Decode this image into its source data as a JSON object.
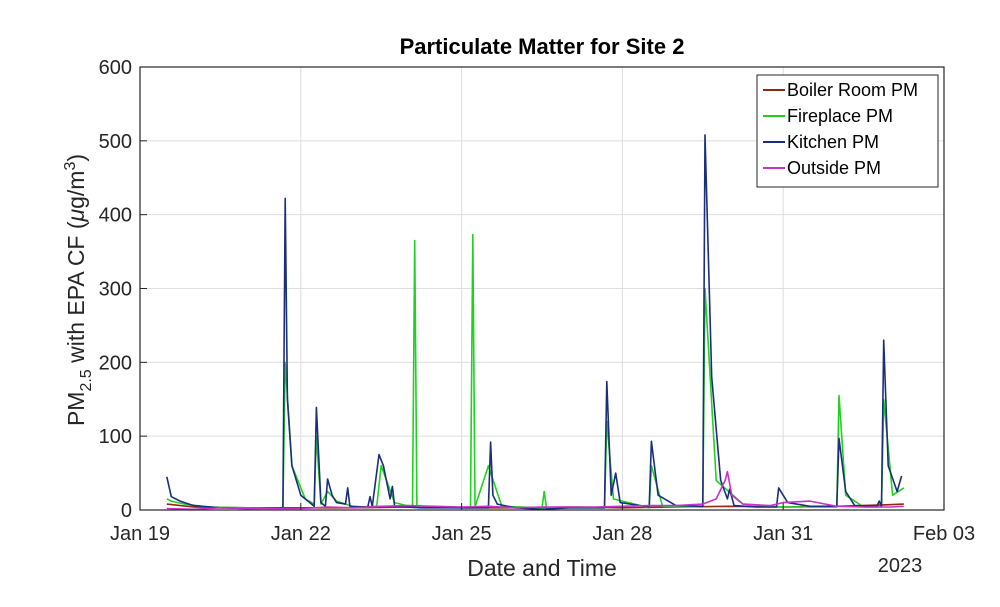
{
  "chart_data": {
    "type": "line",
    "title": "Particulate Matter for Site 2",
    "xlabel": "Date and Time",
    "ylabel_main": "PM",
    "ylabel_sub": "2.5",
    "ylabel_rest": " with EPA CF (",
    "ylabel_mu": "μ",
    "ylabel_unit": "g/m",
    "ylabel_sup": "3",
    "ylabel_close": ")",
    "year_label": "2023",
    "ylim": [
      0,
      600
    ],
    "yticks": [
      "0",
      "100",
      "200",
      "300",
      "400",
      "500",
      "600"
    ],
    "xlim": [
      "2023-01-19",
      "2023-02-03"
    ],
    "xticks": [
      {
        "date": "2023-01-19",
        "label": "Jan 19"
      },
      {
        "date": "2023-01-22",
        "label": "Jan 22"
      },
      {
        "date": "2023-01-25",
        "label": "Jan 25"
      },
      {
        "date": "2023-01-28",
        "label": "Jan 28"
      },
      {
        "date": "2023-01-31",
        "label": "Jan 31"
      },
      {
        "date": "2023-02-03",
        "label": "Feb 03"
      }
    ],
    "grid": true,
    "legend_position": "top-right",
    "series": [
      {
        "name": "Boiler Room PM",
        "color": "#8b2a0f",
        "points": [
          [
            "2023-01-19T12:00",
            8
          ],
          [
            "2023-01-20T00:00",
            4
          ],
          [
            "2023-01-21T00:00",
            3
          ],
          [
            "2023-01-22T00:00",
            3
          ],
          [
            "2023-01-23T00:00",
            3
          ],
          [
            "2023-01-24T00:00",
            4
          ],
          [
            "2023-01-25T00:00",
            3
          ],
          [
            "2023-01-26T00:00",
            3
          ],
          [
            "2023-01-27T00:00",
            4
          ],
          [
            "2023-01-28T00:00",
            3
          ],
          [
            "2023-01-29T00:00",
            4
          ],
          [
            "2023-01-30T00:00",
            5
          ],
          [
            "2023-01-31T00:00",
            4
          ],
          [
            "2023-02-01T00:00",
            5
          ],
          [
            "2023-02-01T22:00",
            7
          ],
          [
            "2023-02-02T06:00",
            8
          ]
        ]
      },
      {
        "name": "Fireplace PM",
        "color": "#22d022",
        "points": [
          [
            "2023-01-19T12:00",
            15
          ],
          [
            "2023-01-19T14:00",
            12
          ],
          [
            "2023-01-19T20:00",
            8
          ],
          [
            "2023-01-20T06:00",
            4
          ],
          [
            "2023-01-21T00:00",
            3
          ],
          [
            "2023-01-21T16:00",
            3
          ],
          [
            "2023-01-21T17:00",
            200
          ],
          [
            "2023-01-21T20:00",
            60
          ],
          [
            "2023-01-22T02:00",
            15
          ],
          [
            "2023-01-22T06:00",
            8
          ],
          [
            "2023-01-22T07:00",
            100
          ],
          [
            "2023-01-22T09:00",
            8
          ],
          [
            "2023-01-22T12:00",
            25
          ],
          [
            "2023-01-22T16:00",
            12
          ],
          [
            "2023-01-23T00:00",
            4
          ],
          [
            "2023-01-23T10:00",
            5
          ],
          [
            "2023-01-23T12:00",
            60
          ],
          [
            "2023-01-23T18:00",
            10
          ],
          [
            "2023-01-24T02:00",
            4
          ],
          [
            "2023-01-24T03:00",
            365
          ],
          [
            "2023-01-24T04:00",
            4
          ],
          [
            "2023-01-25T04:00",
            3
          ],
          [
            "2023-01-25T05:00",
            373
          ],
          [
            "2023-01-25T06:00",
            4
          ],
          [
            "2023-01-25T12:00",
            60
          ],
          [
            "2023-01-25T18:00",
            5
          ],
          [
            "2023-01-26T12:00",
            3
          ],
          [
            "2023-01-26T13:00",
            25
          ],
          [
            "2023-01-26T14:00",
            3
          ],
          [
            "2023-01-27T16:00",
            3
          ],
          [
            "2023-01-27T17:00",
            120
          ],
          [
            "2023-01-27T20:00",
            15
          ],
          [
            "2023-01-28T12:00",
            3
          ],
          [
            "2023-01-28T13:00",
            60
          ],
          [
            "2023-01-28T18:00",
            5
          ],
          [
            "2023-01-29T12:00",
            4
          ],
          [
            "2023-01-29T13:00",
            300
          ],
          [
            "2023-01-29T18:00",
            40
          ],
          [
            "2023-01-30T06:00",
            8
          ],
          [
            "2023-01-31T00:00",
            4
          ],
          [
            "2023-02-01T00:00",
            4
          ],
          [
            "2023-02-01T01:00",
            155
          ],
          [
            "2023-02-01T04:00",
            20
          ],
          [
            "2023-02-01T12:00",
            4
          ],
          [
            "2023-02-01T20:00",
            4
          ],
          [
            "2023-02-01T21:00",
            150
          ],
          [
            "2023-02-02T01:00",
            20
          ],
          [
            "2023-02-02T06:00",
            30
          ]
        ]
      },
      {
        "name": "Kitchen PM",
        "color": "#1a2e7a",
        "points": [
          [
            "2023-01-19T12:00",
            45
          ],
          [
            "2023-01-19T14:00",
            18
          ],
          [
            "2023-01-19T18:00",
            12
          ],
          [
            "2023-01-20T00:00",
            6
          ],
          [
            "2023-01-20T12:00",
            3
          ],
          [
            "2023-01-21T00:00",
            2
          ],
          [
            "2023-01-21T16:00",
            3
          ],
          [
            "2023-01-21T17:00",
            422
          ],
          [
            "2023-01-21T18:00",
            150
          ],
          [
            "2023-01-21T20:00",
            60
          ],
          [
            "2023-01-22T00:00",
            20
          ],
          [
            "2023-01-22T06:00",
            5
          ],
          [
            "2023-01-22T07:00",
            139
          ],
          [
            "2023-01-22T09:00",
            10
          ],
          [
            "2023-01-22T11:00",
            5
          ],
          [
            "2023-01-22T12:00",
            42
          ],
          [
            "2023-01-22T14:00",
            20
          ],
          [
            "2023-01-22T16:00",
            10
          ],
          [
            "2023-01-22T20:00",
            8
          ],
          [
            "2023-01-22T21:00",
            30
          ],
          [
            "2023-01-22T22:00",
            5
          ],
          [
            "2023-01-23T06:00",
            4
          ],
          [
            "2023-01-23T07:00",
            18
          ],
          [
            "2023-01-23T08:00",
            5
          ],
          [
            "2023-01-23T11:00",
            75
          ],
          [
            "2023-01-23T13:00",
            60
          ],
          [
            "2023-01-23T16:00",
            15
          ],
          [
            "2023-01-23T17:00",
            32
          ],
          [
            "2023-01-23T18:00",
            5
          ],
          [
            "2023-01-24T06:00",
            3
          ],
          [
            "2023-01-25T12:00",
            3
          ],
          [
            "2023-01-25T13:00",
            92
          ],
          [
            "2023-01-25T14:00",
            20
          ],
          [
            "2023-01-25T16:00",
            8
          ],
          [
            "2023-01-26T00:00",
            3
          ],
          [
            "2023-01-26T12:00",
            1
          ],
          [
            "2023-01-27T00:00",
            3
          ],
          [
            "2023-01-27T16:00",
            3
          ],
          [
            "2023-01-27T17:00",
            174
          ],
          [
            "2023-01-27T19:00",
            20
          ],
          [
            "2023-01-27T21:00",
            50
          ],
          [
            "2023-01-27T23:00",
            10
          ],
          [
            "2023-01-28T12:00",
            4
          ],
          [
            "2023-01-28T13:00",
            93
          ],
          [
            "2023-01-28T16:00",
            20
          ],
          [
            "2023-01-29T00:00",
            6
          ],
          [
            "2023-01-29T12:00",
            5
          ],
          [
            "2023-01-29T13:00",
            508
          ],
          [
            "2023-01-29T16:00",
            180
          ],
          [
            "2023-01-29T20:00",
            40
          ],
          [
            "2023-01-29T23:00",
            15
          ],
          [
            "2023-01-30T00:00",
            28
          ],
          [
            "2023-01-30T02:00",
            6
          ],
          [
            "2023-01-30T12:00",
            4
          ],
          [
            "2023-01-30T21:00",
            4
          ],
          [
            "2023-01-30T22:00",
            30
          ],
          [
            "2023-01-31T02:00",
            10
          ],
          [
            "2023-01-31T12:00",
            5
          ],
          [
            "2023-02-01T00:00",
            5
          ],
          [
            "2023-02-01T01:00",
            97
          ],
          [
            "2023-02-01T04:00",
            25
          ],
          [
            "2023-02-01T08:00",
            6
          ],
          [
            "2023-02-01T18:00",
            5
          ],
          [
            "2023-02-01T19:00",
            12
          ],
          [
            "2023-02-01T20:00",
            5
          ],
          [
            "2023-02-01T21:00",
            230
          ],
          [
            "2023-02-01T23:00",
            60
          ],
          [
            "2023-02-02T03:00",
            25
          ],
          [
            "2023-02-02T05:00",
            46
          ]
        ]
      },
      {
        "name": "Outside PM",
        "color": "#c832c8",
        "points": [
          [
            "2023-01-19T12:00",
            2
          ],
          [
            "2023-01-20T00:00",
            1
          ],
          [
            "2023-01-20T12:00",
            3
          ],
          [
            "2023-01-21T00:00",
            2
          ],
          [
            "2023-01-22T00:00",
            2
          ],
          [
            "2023-01-22T12:00",
            4
          ],
          [
            "2023-01-23T00:00",
            3
          ],
          [
            "2023-01-23T12:00",
            5
          ],
          [
            "2023-01-24T00:00",
            6
          ],
          [
            "2023-01-24T12:00",
            5
          ],
          [
            "2023-01-25T00:00",
            4
          ],
          [
            "2023-01-25T12:00",
            5
          ],
          [
            "2023-01-26T00:00",
            3
          ],
          [
            "2023-01-26T12:00",
            4
          ],
          [
            "2023-01-27T00:00",
            4
          ],
          [
            "2023-01-27T12:00",
            4
          ],
          [
            "2023-01-28T00:00",
            5
          ],
          [
            "2023-01-28T12:00",
            6
          ],
          [
            "2023-01-29T00:00",
            6
          ],
          [
            "2023-01-29T12:00",
            8
          ],
          [
            "2023-01-29T18:00",
            15
          ],
          [
            "2023-01-29T22:00",
            40
          ],
          [
            "2023-01-29T23:00",
            52
          ],
          [
            "2023-01-30T01:00",
            20
          ],
          [
            "2023-01-30T06:00",
            8
          ],
          [
            "2023-01-30T18:00",
            6
          ],
          [
            "2023-01-31T00:00",
            10
          ],
          [
            "2023-01-31T12:00",
            12
          ],
          [
            "2023-02-01T00:00",
            5
          ],
          [
            "2023-02-01T12:00",
            4
          ],
          [
            "2023-02-02T00:00",
            4
          ],
          [
            "2023-02-02T06:00",
            5
          ]
        ]
      }
    ]
  }
}
